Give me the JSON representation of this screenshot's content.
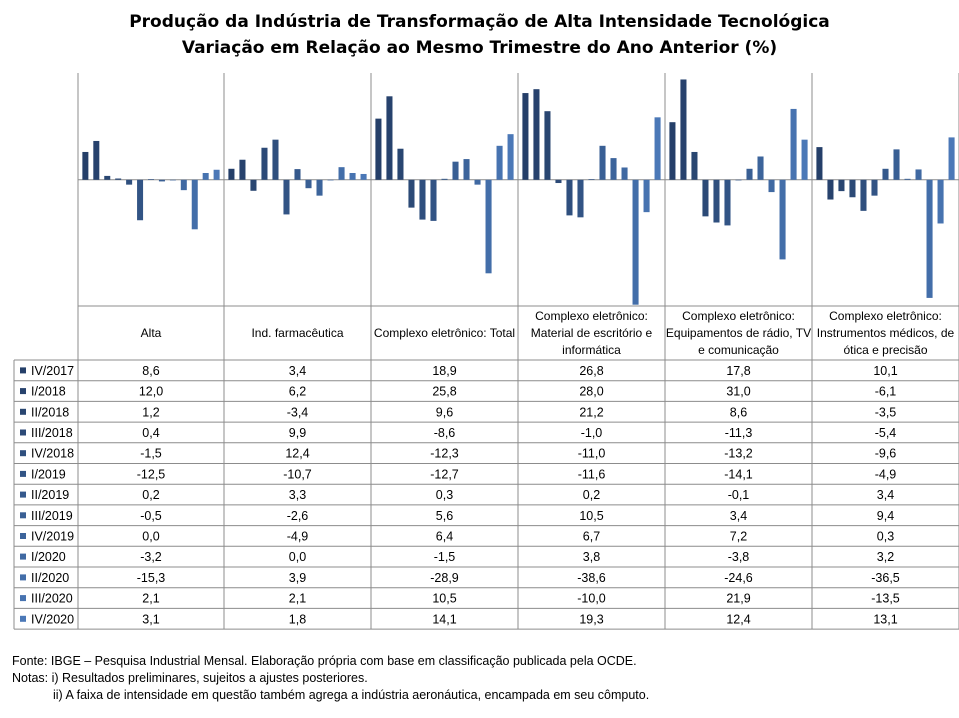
{
  "chart_data": {
    "type": "bar",
    "title": "Produção da Indústria de Transformação de Alta Intensidade Tecnológica",
    "subtitle": "Variação em Relação ao Mesmo Trimestre do Ano Anterior (%)",
    "categories": [
      "Alta",
      "Ind. farmacêutica",
      "Complexo eletrônico: Total",
      "Complexo eletrônico: Material de escritório e informática",
      "Complexo eletrônico: Equipamentos de rádio, TV e comunicação",
      "Complexo eletrônico: Instrumentos médicos, de ótica e precisão"
    ],
    "category_lines": [
      [
        "Alta"
      ],
      [
        "Ind. farmacêutica"
      ],
      [
        "Complexo eletrônico: Total"
      ],
      [
        "Complexo eletrônico:",
        "Material de escritório e",
        "informática"
      ],
      [
        "Complexo eletrônico:",
        "Equipamentos de rádio, TV",
        "e comunicação"
      ],
      [
        "Complexo eletrônico:",
        "Instrumentos médicos, de",
        "ótica e precisão"
      ]
    ],
    "series": [
      {
        "name": "IV/2017",
        "color": "#253f69",
        "values": [
          8.6,
          3.4,
          18.9,
          26.8,
          17.8,
          10.1
        ],
        "labels": [
          "8,6",
          "3,4",
          "18,9",
          "26,8",
          "17,8",
          "10,1"
        ]
      },
      {
        "name": "I/2018",
        "color": "#27426d",
        "values": [
          12.0,
          6.2,
          25.8,
          28.0,
          31.0,
          -6.1
        ],
        "labels": [
          "12,0",
          "6,2",
          "25,8",
          "28,0",
          "31,0",
          "-6,1"
        ]
      },
      {
        "name": "II/2018",
        "color": "#294671",
        "values": [
          1.2,
          -3.4,
          9.6,
          21.2,
          8.6,
          -3.5
        ],
        "labels": [
          "1,2",
          "-3,4",
          "9,6",
          "21,2",
          "8,6",
          "-3,5"
        ]
      },
      {
        "name": "III/2018",
        "color": "#2c4a77",
        "values": [
          0.4,
          9.9,
          -8.6,
          -1.0,
          -11.3,
          -5.4
        ],
        "labels": [
          "0,4",
          "9,9",
          "-8,6",
          "-1,0",
          "-11,3",
          "-5,4"
        ]
      },
      {
        "name": "IV/2018",
        "color": "#2f4f7e",
        "values": [
          -1.5,
          12.4,
          -12.3,
          -11.0,
          -13.2,
          -9.6
        ],
        "labels": [
          "-1,5",
          "12,4",
          "-12,3",
          "-11,0",
          "-13,2",
          "-9,6"
        ]
      },
      {
        "name": "I/2019",
        "color": "#325485",
        "values": [
          -12.5,
          -10.7,
          -12.7,
          -11.6,
          -14.1,
          -4.9
        ],
        "labels": [
          "-12,5",
          "-10,7",
          "-12,7",
          "-11,6",
          "-14,1",
          "-4,9"
        ]
      },
      {
        "name": "II/2019",
        "color": "#35598c",
        "values": [
          0.2,
          3.3,
          0.3,
          0.2,
          -0.1,
          3.4
        ],
        "labels": [
          "0,2",
          "3,3",
          "0,3",
          "0,2",
          "-0,1",
          "3,4"
        ]
      },
      {
        "name": "III/2019",
        "color": "#395f94",
        "values": [
          -0.5,
          -2.6,
          5.6,
          10.5,
          3.4,
          9.4
        ],
        "labels": [
          "-0,5",
          "-2,6",
          "5,6",
          "10,5",
          "3,4",
          "9,4"
        ]
      },
      {
        "name": "IV/2019",
        "color": "#3c649b",
        "values": [
          0.0,
          -4.9,
          6.4,
          6.7,
          7.2,
          0.3
        ],
        "labels": [
          "0,0",
          "-4,9",
          "6,4",
          "6,7",
          "7,2",
          "0,3"
        ]
      },
      {
        "name": "I/2020",
        "color": "#4069a2",
        "values": [
          -3.2,
          0.0,
          -1.5,
          3.8,
          -3.8,
          3.2
        ],
        "labels": [
          "-3,2",
          "0,0",
          "-1,5",
          "3,8",
          "-3,8",
          "3,2"
        ]
      },
      {
        "name": "II/2020",
        "color": "#436ea9",
        "values": [
          -15.3,
          3.9,
          -28.9,
          -38.6,
          -24.6,
          -36.5
        ],
        "labels": [
          "-15,3",
          "3,9",
          "-28,9",
          "-38,6",
          "-24,6",
          "-36,5"
        ]
      },
      {
        "name": "III/2020",
        "color": "#4773b0",
        "values": [
          2.1,
          2.1,
          10.5,
          -10.0,
          21.9,
          -13.5
        ],
        "labels": [
          "2,1",
          "2,1",
          "10,5",
          "-10,0",
          "21,9",
          "-13,5"
        ]
      },
      {
        "name": "IV/2020",
        "color": "#4b78b7",
        "values": [
          3.1,
          1.8,
          14.1,
          19.3,
          12.4,
          13.1
        ],
        "labels": [
          "3,1",
          "1,8",
          "14,1",
          "19,3",
          "12,4",
          "13,1"
        ]
      }
    ],
    "ylim": [
      -39,
      33
    ],
    "grid": false,
    "legend": "left, as data table rows"
  },
  "notes": {
    "source": "Fonte: IBGE – Pesquisa Industrial Mensal. Elaboração própria com base em classificação publicada pela OCDE.",
    "note1": "Notas: i) Resultados preliminares, sujeitos a ajustes posteriores.",
    "note2": "ii) A faixa de intensidade em questão também agrega a indústria aeronáutica, encampada em seu cômputo."
  }
}
